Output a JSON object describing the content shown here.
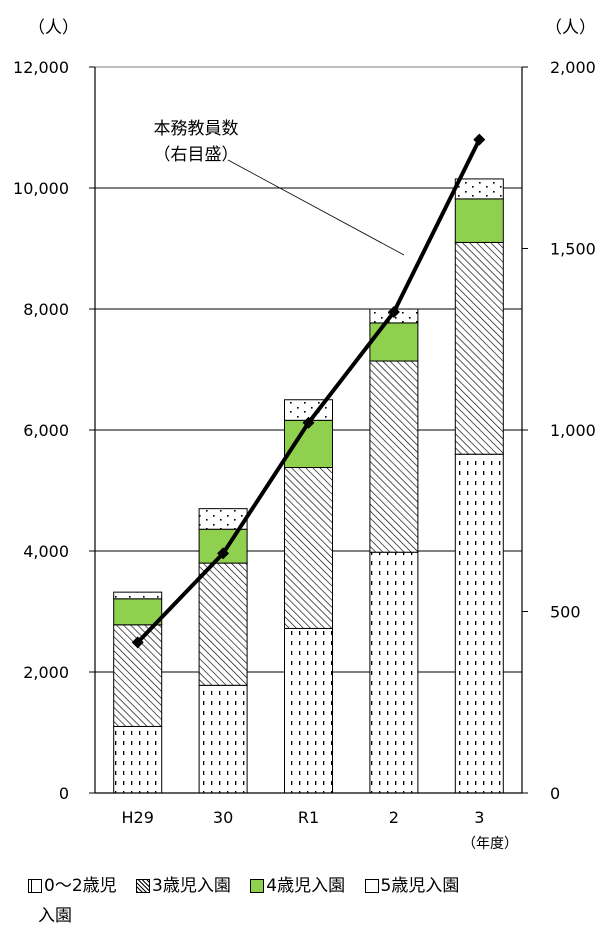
{
  "chart_data": {
    "type": "bar",
    "stacked": true,
    "categories": [
      "H29",
      "30",
      "R1",
      "2",
      "3"
    ],
    "x_unit": "（年度）",
    "y_left": {
      "unit": "（人）",
      "min": 0,
      "max": 12000,
      "ticks": [
        "0",
        "2,000",
        "4,000",
        "6,000",
        "8,000",
        "10,000",
        "12,000"
      ],
      "tick_values": [
        0,
        2000,
        4000,
        6000,
        8000,
        10000,
        12000
      ]
    },
    "y_right": {
      "unit": "（人）",
      "min": 0,
      "max": 2000,
      "ticks": [
        "0",
        "500",
        "1,000",
        "1,500",
        "2,000"
      ],
      "tick_values": [
        0,
        500,
        1000,
        1500,
        2000
      ]
    },
    "grid": true,
    "series": [
      {
        "name": "0～2歳児入園",
        "values": [
          1100,
          1780,
          2720,
          3980,
          5600
        ]
      },
      {
        "name": "3歳児入園",
        "values": [
          1680,
          2020,
          2660,
          3160,
          3500
        ]
      },
      {
        "name": "4歳児入園",
        "values": [
          430,
          560,
          780,
          630,
          720
        ]
      },
      {
        "name": "5歳児入園",
        "values": [
          110,
          340,
          340,
          230,
          330
        ]
      }
    ],
    "line_series": {
      "values": [
        415,
        660,
        1020,
        1325,
        1800
      ],
      "axis": "right"
    },
    "annotation": {
      "line1": "本務教員数",
      "line2": "（右目盛）"
    },
    "colors": {
      "green": "#8fd14f",
      "line": "#000000",
      "grid": "#000000"
    }
  },
  "legend": {
    "item1": "0～2歳児",
    "item2": "3歳児入園",
    "item3": "4歳児入園",
    "item4": "5歳児入園",
    "item1_cont": "入園"
  }
}
